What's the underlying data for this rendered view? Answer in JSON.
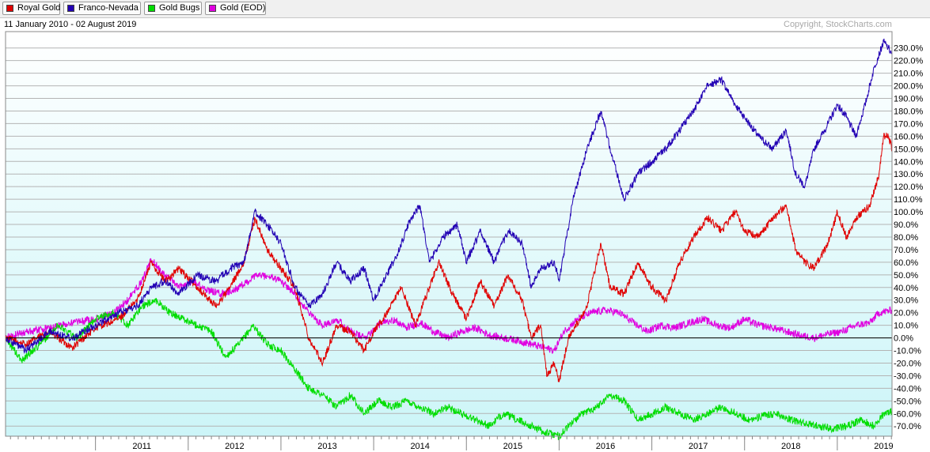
{
  "legend": {
    "items": [
      {
        "label": "Royal Gold",
        "color": "#e00000"
      },
      {
        "label": "Franco-Nevada",
        "color": "#2200b4"
      },
      {
        "label": "Gold Bugs",
        "color": "#00dd00"
      },
      {
        "label": "Gold (EOD)",
        "color": "#e000e0"
      }
    ]
  },
  "header": {
    "date_range": "11 January 2010 - 02 August 2019",
    "copyright": "Copyright, StockCharts.com"
  },
  "chart_data": {
    "type": "line",
    "x_ticks": [
      "2011",
      "2012",
      "2013",
      "2014",
      "2015",
      "2016",
      "2017",
      "2018",
      "2019"
    ],
    "y_ticks": [
      "230.0%",
      "220.0%",
      "210.0%",
      "200.0%",
      "190.0%",
      "180.0%",
      "170.0%",
      "160.0%",
      "150.0%",
      "140.0%",
      "130.0%",
      "120.0%",
      "110.0%",
      "100.0%",
      "90.0%",
      "80.0%",
      "70.0%",
      "60.0%",
      "50.0%",
      "40.0%",
      "30.0%",
      "20.0%",
      "10.0%",
      "0.0%",
      "-10.0%",
      "-20.0%",
      "-30.0%",
      "-40.0%",
      "-50.0%",
      "-60.0%",
      "-70.0%"
    ],
    "ylim": [
      -78,
      243
    ],
    "xlim": [
      2010.03,
      2019.59
    ],
    "grid": true,
    "zero_line": true,
    "series": [
      {
        "name": "Royal Gold",
        "color": "#e00000",
        "x": [
          2010.03,
          2010.25,
          2010.5,
          2010.75,
          2011.0,
          2011.25,
          2011.45,
          2011.6,
          2011.75,
          2011.9,
          2012.1,
          2012.3,
          2012.45,
          2012.6,
          2012.72,
          2012.85,
          2013.0,
          2013.15,
          2013.3,
          2013.45,
          2013.6,
          2013.75,
          2013.9,
          2014.0,
          2014.15,
          2014.3,
          2014.45,
          2014.55,
          2014.7,
          2014.85,
          2015.0,
          2015.15,
          2015.3,
          2015.45,
          2015.6,
          2015.7,
          2015.8,
          2015.87,
          2015.95,
          2016.0,
          2016.1,
          2016.3,
          2016.45,
          2016.55,
          2016.7,
          2016.85,
          2017.0,
          2017.15,
          2017.3,
          2017.45,
          2017.6,
          2017.75,
          2017.9,
          2018.0,
          2018.15,
          2018.3,
          2018.45,
          2018.55,
          2018.65,
          2018.75,
          2018.9,
          2019.0,
          2019.1,
          2019.2,
          2019.35,
          2019.45,
          2019.5,
          2019.55,
          2019.59
        ],
        "y": [
          0,
          -5,
          5,
          -8,
          8,
          15,
          30,
          60,
          45,
          55,
          40,
          25,
          40,
          60,
          95,
          70,
          55,
          40,
          0,
          -20,
          10,
          5,
          -10,
          5,
          20,
          40,
          10,
          30,
          60,
          35,
          15,
          45,
          25,
          50,
          30,
          0,
          10,
          -30,
          -20,
          -35,
          0,
          25,
          75,
          40,
          35,
          60,
          40,
          30,
          60,
          80,
          95,
          85,
          100,
          85,
          80,
          95,
          105,
          70,
          60,
          55,
          75,
          100,
          80,
          95,
          105,
          130,
          160,
          160,
          150
        ]
      },
      {
        "name": "Franco-Nevada",
        "color": "#2200b4",
        "x": [
          2010.03,
          2010.25,
          2010.5,
          2010.75,
          2011.0,
          2011.25,
          2011.45,
          2011.6,
          2011.75,
          2011.9,
          2012.1,
          2012.3,
          2012.45,
          2012.6,
          2012.72,
          2012.85,
          2013.0,
          2013.15,
          2013.3,
          2013.45,
          2013.6,
          2013.75,
          2013.9,
          2014.0,
          2014.1,
          2014.25,
          2014.4,
          2014.5,
          2014.6,
          2014.75,
          2014.9,
          2015.0,
          2015.15,
          2015.3,
          2015.45,
          2015.6,
          2015.7,
          2015.8,
          2015.95,
          2016.0,
          2016.15,
          2016.3,
          2016.45,
          2016.55,
          2016.7,
          2016.85,
          2017.0,
          2017.15,
          2017.3,
          2017.45,
          2017.6,
          2017.75,
          2017.9,
          2018.0,
          2018.15,
          2018.3,
          2018.45,
          2018.55,
          2018.65,
          2018.75,
          2018.9,
          2019.0,
          2019.1,
          2019.2,
          2019.3,
          2019.4,
          2019.5,
          2019.55,
          2019.59
        ],
        "y": [
          0,
          -10,
          5,
          0,
          10,
          20,
          25,
          40,
          45,
          35,
          50,
          45,
          55,
          60,
          100,
          90,
          75,
          40,
          25,
          35,
          60,
          45,
          55,
          30,
          45,
          65,
          95,
          105,
          60,
          80,
          90,
          60,
          85,
          60,
          85,
          75,
          40,
          55,
          60,
          45,
          110,
          150,
          180,
          150,
          110,
          130,
          140,
          150,
          165,
          180,
          200,
          205,
          185,
          175,
          160,
          150,
          165,
          130,
          120,
          150,
          170,
          185,
          175,
          160,
          185,
          215,
          235,
          230,
          225
        ]
      },
      {
        "name": "Gold Bugs",
        "color": "#00dd00",
        "x": [
          2010.03,
          2010.2,
          2010.4,
          2010.6,
          2010.8,
          2011.0,
          2011.2,
          2011.35,
          2011.5,
          2011.65,
          2011.8,
          2011.95,
          2012.1,
          2012.25,
          2012.4,
          2012.55,
          2012.7,
          2012.85,
          2013.0,
          2013.15,
          2013.3,
          2013.45,
          2013.6,
          2013.75,
          2013.9,
          2014.05,
          2014.2,
          2014.35,
          2014.5,
          2014.65,
          2014.8,
          2014.95,
          2015.1,
          2015.25,
          2015.4,
          2015.55,
          2015.7,
          2015.85,
          2016.0,
          2016.1,
          2016.25,
          2016.4,
          2016.55,
          2016.7,
          2016.85,
          2017.0,
          2017.15,
          2017.3,
          2017.45,
          2017.6,
          2017.75,
          2017.9,
          2018.05,
          2018.2,
          2018.35,
          2018.5,
          2018.65,
          2018.8,
          2018.95,
          2019.1,
          2019.25,
          2019.4,
          2019.5,
          2019.59
        ],
        "y": [
          0,
          -18,
          -5,
          10,
          0,
          15,
          20,
          10,
          25,
          30,
          20,
          15,
          10,
          5,
          -15,
          -5,
          10,
          -5,
          -10,
          -25,
          -40,
          -45,
          -55,
          -45,
          -60,
          -50,
          -55,
          -50,
          -55,
          -60,
          -55,
          -60,
          -65,
          -70,
          -60,
          -65,
          -70,
          -75,
          -78,
          -70,
          -60,
          -55,
          -45,
          -50,
          -65,
          -60,
          -55,
          -60,
          -65,
          -60,
          -55,
          -60,
          -65,
          -62,
          -60,
          -65,
          -68,
          -70,
          -72,
          -70,
          -65,
          -70,
          -60,
          -58
        ]
      },
      {
        "name": "Gold (EOD)",
        "color": "#e000e0",
        "x": [
          2010.03,
          2010.25,
          2010.5,
          2010.75,
          2011.0,
          2011.2,
          2011.35,
          2011.5,
          2011.6,
          2011.75,
          2011.9,
          2012.05,
          2012.2,
          2012.35,
          2012.5,
          2012.65,
          2012.75,
          2012.9,
          2013.0,
          2013.15,
          2013.3,
          2013.45,
          2013.6,
          2013.75,
          2013.9,
          2014.05,
          2014.2,
          2014.35,
          2014.5,
          2014.65,
          2014.8,
          2014.95,
          2015.1,
          2015.25,
          2015.4,
          2015.55,
          2015.7,
          2015.85,
          2015.95,
          2016.05,
          2016.2,
          2016.35,
          2016.5,
          2016.65,
          2016.8,
          2016.95,
          2017.1,
          2017.25,
          2017.4,
          2017.55,
          2017.7,
          2017.85,
          2018.0,
          2018.15,
          2018.3,
          2018.45,
          2018.6,
          2018.75,
          2018.9,
          2019.05,
          2019.2,
          2019.35,
          2019.45,
          2019.59
        ],
        "y": [
          0,
          5,
          8,
          12,
          15,
          20,
          30,
          45,
          62,
          50,
          40,
          45,
          38,
          35,
          38,
          45,
          50,
          48,
          45,
          35,
          20,
          10,
          15,
          5,
          0,
          10,
          15,
          8,
          12,
          5,
          0,
          5,
          8,
          2,
          0,
          -2,
          -5,
          -8,
          -10,
          5,
          15,
          20,
          22,
          20,
          12,
          5,
          10,
          8,
          12,
          15,
          10,
          8,
          15,
          10,
          8,
          5,
          2,
          0,
          3,
          5,
          10,
          12,
          20,
          22
        ]
      }
    ]
  }
}
